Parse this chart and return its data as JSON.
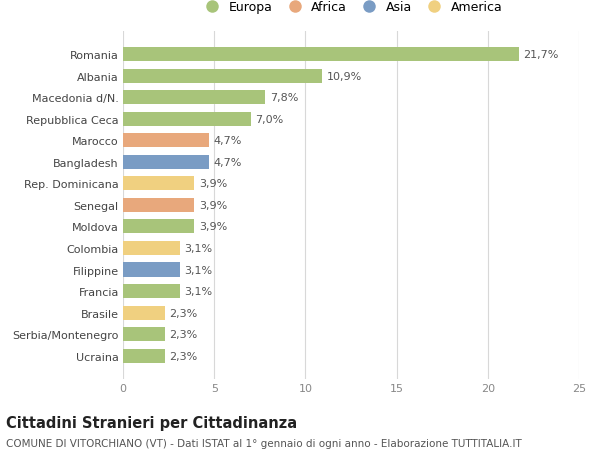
{
  "countries": [
    "Ucraina",
    "Serbia/Montenegro",
    "Brasile",
    "Francia",
    "Filippine",
    "Colombia",
    "Moldova",
    "Senegal",
    "Rep. Dominicana",
    "Bangladesh",
    "Marocco",
    "Repubblica Ceca",
    "Macedonia d/N.",
    "Albania",
    "Romania"
  ],
  "values": [
    2.3,
    2.3,
    2.3,
    3.1,
    3.1,
    3.1,
    3.9,
    3.9,
    3.9,
    4.7,
    4.7,
    7.0,
    7.8,
    10.9,
    21.7
  ],
  "labels": [
    "2,3%",
    "2,3%",
    "2,3%",
    "3,1%",
    "3,1%",
    "3,1%",
    "3,9%",
    "3,9%",
    "3,9%",
    "4,7%",
    "4,7%",
    "7,0%",
    "7,8%",
    "10,9%",
    "21,7%"
  ],
  "regions": [
    "Europa",
    "Europa",
    "America",
    "Europa",
    "Asia",
    "America",
    "Europa",
    "Africa",
    "America",
    "Asia",
    "Africa",
    "Europa",
    "Europa",
    "Europa",
    "Europa"
  ],
  "region_colors": {
    "Europa": "#a8c47a",
    "Africa": "#e8a87c",
    "Asia": "#7a9cc4",
    "America": "#f0d080"
  },
  "legend_order": [
    "Europa",
    "Africa",
    "Asia",
    "America"
  ],
  "legend_colors": [
    "#a8c47a",
    "#e8a87c",
    "#7a9cc4",
    "#f0d080"
  ],
  "xlim": [
    0,
    25
  ],
  "xticks": [
    0,
    5,
    10,
    15,
    20,
    25
  ],
  "background_color": "#ffffff",
  "grid_color": "#d8d8d8",
  "title": "Cittadini Stranieri per Cittadinanza",
  "subtitle": "COMUNE DI VITORCHIANO (VT) - Dati ISTAT al 1° gennaio di ogni anno - Elaborazione TUTTITALIA.IT",
  "bar_height": 0.65,
  "label_fontsize": 8,
  "tick_fontsize": 8,
  "title_fontsize": 10.5,
  "subtitle_fontsize": 7.5
}
